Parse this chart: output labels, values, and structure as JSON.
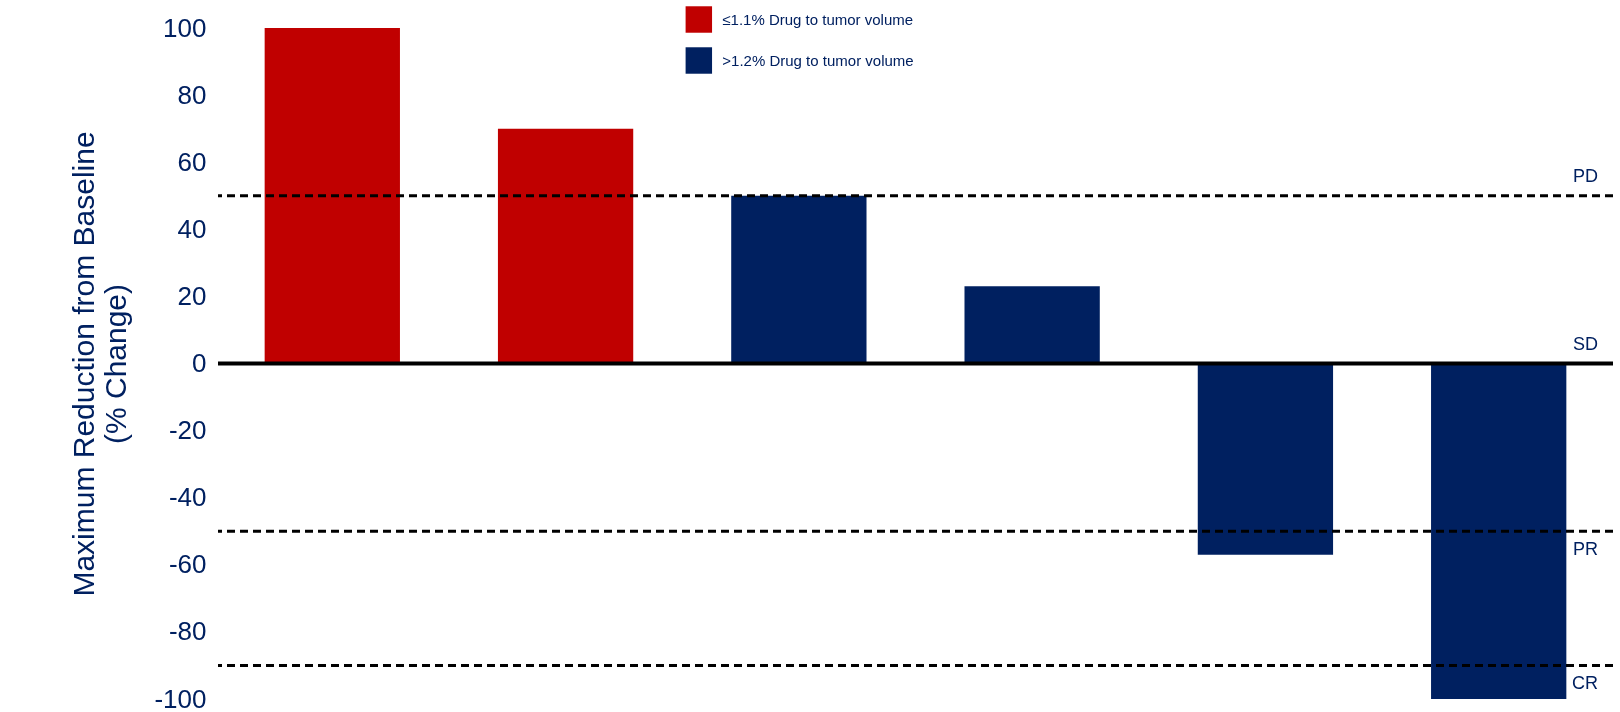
{
  "chart_data": {
    "type": "bar",
    "ylabel": "Maximum Reduction from Baseline\n(% Change)",
    "categories": [
      null,
      null,
      null,
      null,
      null,
      null
    ],
    "series": [
      {
        "name": "≤1.1% Drug to tumor volume",
        "color": "#c00000",
        "values": [
          100,
          70,
          null,
          null,
          null,
          null
        ]
      },
      {
        "name": ">1.2% Drug to tumor volume",
        "color": "#002060",
        "values": [
          null,
          null,
          50,
          23,
          -57,
          -100
        ]
      }
    ],
    "ylim": [
      -100,
      100
    ],
    "yticks": [
      -100,
      -80,
      -60,
      -40,
      -20,
      0,
      20,
      40,
      60,
      80,
      100
    ],
    "ref_lines": [
      {
        "axis": "y",
        "value": 50,
        "label": "PD",
        "color": "#000000",
        "line_style": "dashed"
      },
      {
        "axis": "y",
        "value": 0,
        "label": "SD",
        "color": "#000000",
        "line_style": "solid"
      },
      {
        "axis": "y",
        "value": -50,
        "label": "PR",
        "color": "#000000",
        "line_style": "dashed"
      },
      {
        "axis": "y",
        "value": -90,
        "label": "CR",
        "color": "#000000",
        "line_style": "dashed"
      }
    ],
    "legend": "top",
    "grid": false,
    "tick_labels": "y"
  }
}
